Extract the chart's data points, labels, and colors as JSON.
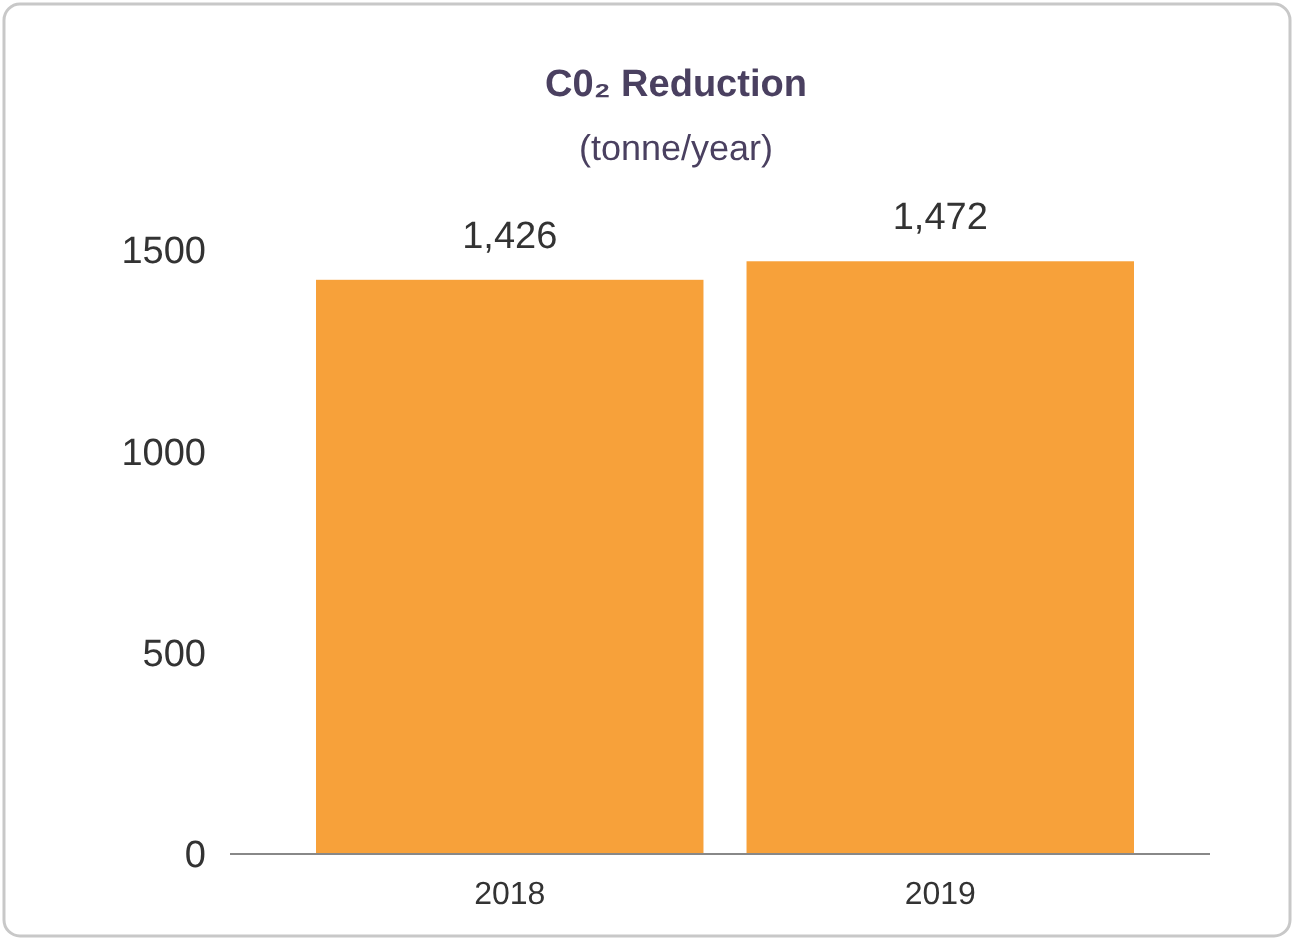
{
  "chart_data": {
    "type": "bar",
    "title": "C0₂ Reduction",
    "subtitle": "(tonne/year)",
    "categories": [
      "2018",
      "2019"
    ],
    "values": [
      1426,
      1472
    ],
    "value_labels": [
      "1,426",
      "1,472"
    ],
    "color": "#f7a13a",
    "ylim": [
      0,
      1500
    ],
    "yticks": [
      0,
      500,
      1000,
      1500
    ],
    "grid": false
  }
}
